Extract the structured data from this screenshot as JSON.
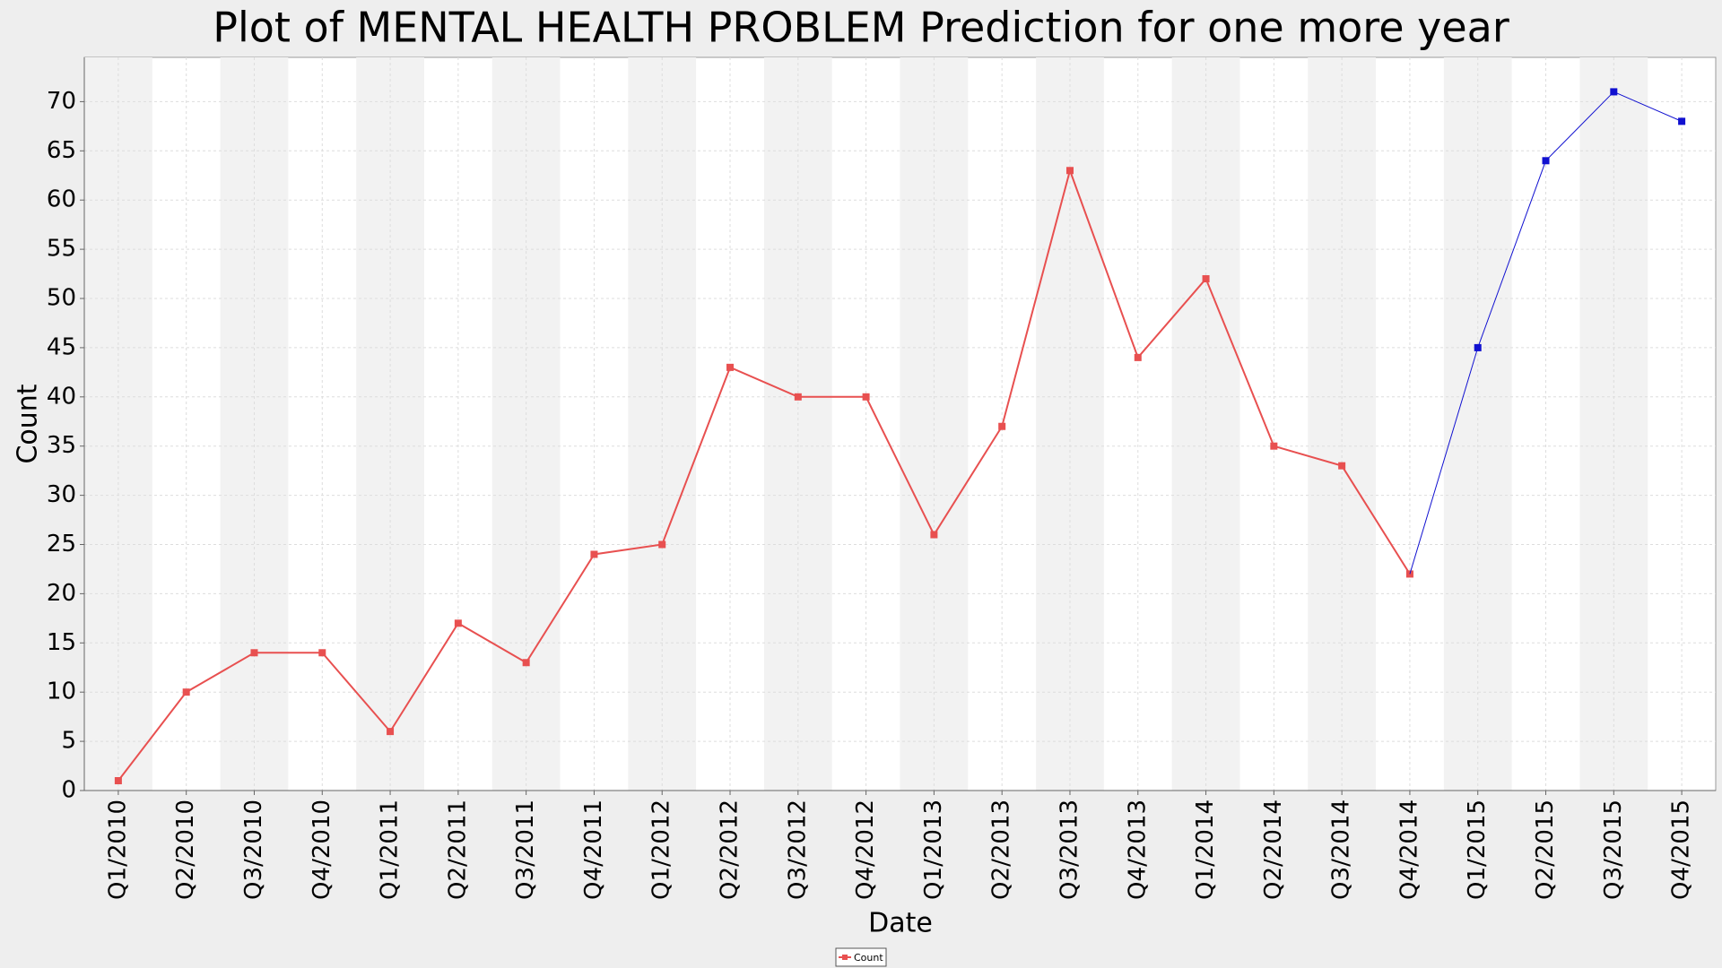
{
  "chart_data": {
    "type": "line",
    "title": "Plot of MENTAL HEALTH PROBLEM Prediction for one more year",
    "x_label": "Date",
    "y_label": "Count",
    "categories": [
      "Q1/2010",
      "Q2/2010",
      "Q3/2010",
      "Q4/2010",
      "Q1/2011",
      "Q2/2011",
      "Q3/2011",
      "Q4/2011",
      "Q1/2012",
      "Q2/2012",
      "Q3/2012",
      "Q4/2012",
      "Q1/2013",
      "Q2/2013",
      "Q3/2013",
      "Q4/2013",
      "Q1/2014",
      "Q2/2014",
      "Q3/2014",
      "Q4/2014",
      "Q1/2015",
      "Q2/2015",
      "Q3/2015",
      "Q4/2015"
    ],
    "series": [
      {
        "name": "Count",
        "color": "#e85050",
        "values": [
          1,
          10,
          14,
          14,
          6,
          17,
          13,
          24,
          25,
          43,
          40,
          40,
          26,
          37,
          63,
          44,
          52,
          35,
          33,
          22,
          null,
          null,
          null,
          null
        ]
      },
      {
        "color": "#1010d0",
        "values": [
          null,
          null,
          null,
          null,
          null,
          null,
          null,
          null,
          null,
          null,
          null,
          null,
          null,
          null,
          null,
          null,
          null,
          null,
          null,
          22,
          45,
          64,
          71,
          68
        ]
      }
    ],
    "ylim": [
      0,
      74.5
    ],
    "yticks": [
      0,
      5,
      10,
      15,
      20,
      25,
      30,
      35,
      40,
      45,
      50,
      55,
      60,
      65,
      70
    ],
    "grid": true,
    "legend": "bottom"
  }
}
